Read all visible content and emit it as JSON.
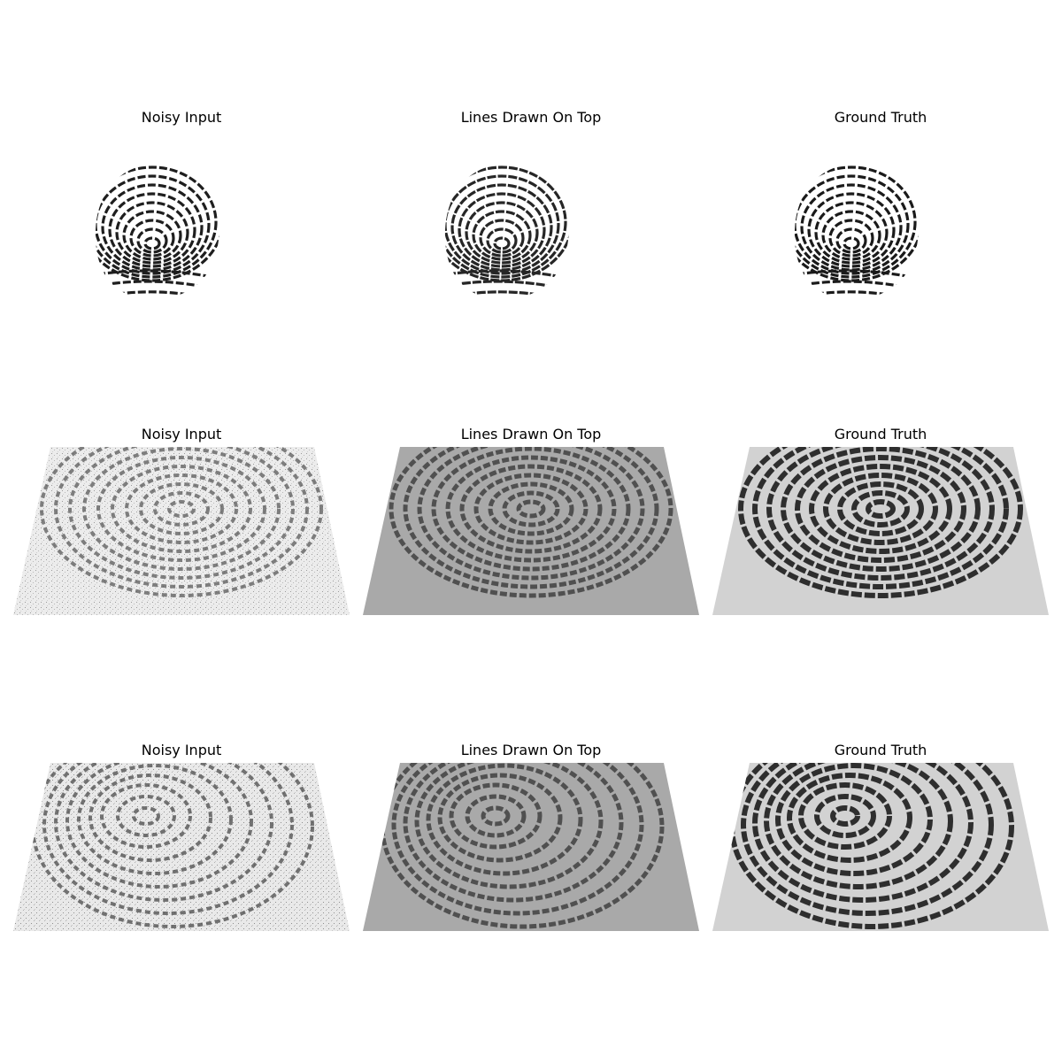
{
  "rows": [
    {
      "titles": [
        "Noisy Input",
        "Lines Drawn On Top",
        "Ground Truth"
      ]
    },
    {
      "titles": [
        "Noisy Input",
        "Lines Drawn On Top",
        "Ground Truth"
      ]
    },
    {
      "titles": [
        "Noisy Input",
        "Lines Drawn On Top",
        "Ground Truth"
      ]
    }
  ],
  "colors": {
    "ridge": "#1e1e1e",
    "noisy_background": "#ececec",
    "reconstructed_background": "#a9a9a9",
    "ground_truth_background": "#d2d2d2"
  }
}
